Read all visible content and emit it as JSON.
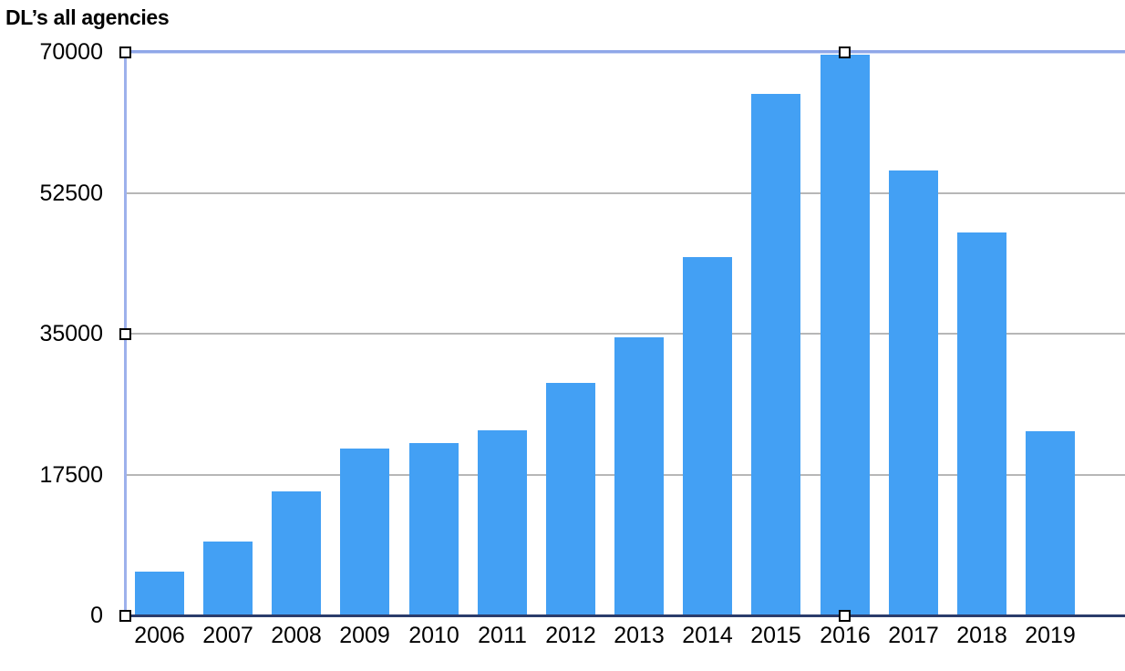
{
  "title": "DL’s all agencies",
  "colors": {
    "bar": "#43a0f4",
    "baseline": "#2b3c6b",
    "gridline": "#b7b7b7",
    "selection_border": "#8fa7e8",
    "selection_border_left": "#9db1ec",
    "handle_fill": "#ffffff",
    "handle_border": "#000000",
    "text": "#000000",
    "background": "#ffffff"
  },
  "chart_data": {
    "type": "bar",
    "title": "DL’s all agencies",
    "xlabel": "",
    "ylabel": "",
    "categories": [
      "2006",
      "2007",
      "2008",
      "2009",
      "2010",
      "2011",
      "2012",
      "2013",
      "2014",
      "2015",
      "2016",
      "2017",
      "2018",
      "2019"
    ],
    "values": [
      5400,
      9200,
      15400,
      20700,
      21400,
      23000,
      28900,
      34500,
      44500,
      64800,
      69700,
      55300,
      47600,
      22900
    ],
    "series_color": "#43a0f4",
    "ylim": [
      0,
      70000
    ],
    "yticks": [
      0,
      17500,
      35000,
      52500,
      70000
    ],
    "ytick_labels": [
      "0",
      "17500",
      "35000",
      "52500",
      "70000"
    ],
    "grid": true,
    "legend": false,
    "selection_state": "chart-selected"
  }
}
